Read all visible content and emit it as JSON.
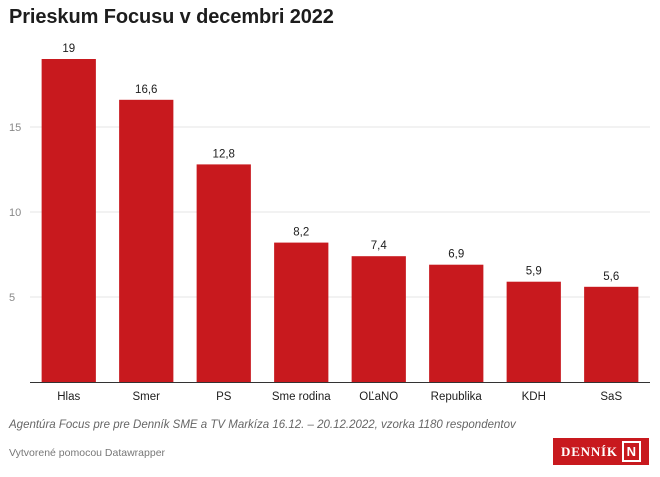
{
  "title": "Prieskum Focusu v decembri 2022",
  "source_note": "Agentúra Focus pre pre Denník SME a TV Markíza 16.12. – 20.12.2022, vzorka 1180 respondentov",
  "credit": "Vytvorené pomocou Datawrapper",
  "logo": {
    "text": "DENNÍK",
    "mark": "N"
  },
  "colors": {
    "bar": "#c8191e",
    "grid": "#e5e5e5",
    "axis": "#333333",
    "text": "#1d1d1d",
    "tick": "#888888"
  },
  "chart_data": {
    "type": "bar",
    "categories": [
      "Hlas",
      "Smer",
      "PS",
      "Sme rodina",
      "OĽaNO",
      "Republika",
      "KDH",
      "SaS"
    ],
    "values": [
      19,
      16.6,
      12.8,
      8.2,
      7.4,
      6.9,
      5.9,
      5.6
    ],
    "value_labels": [
      "19",
      "16,6",
      "12,8",
      "8,2",
      "7,4",
      "6,9",
      "5,9",
      "5,6"
    ],
    "yticks": [
      5,
      10,
      15
    ],
    "ylim": [
      0,
      20
    ],
    "grid": true
  }
}
